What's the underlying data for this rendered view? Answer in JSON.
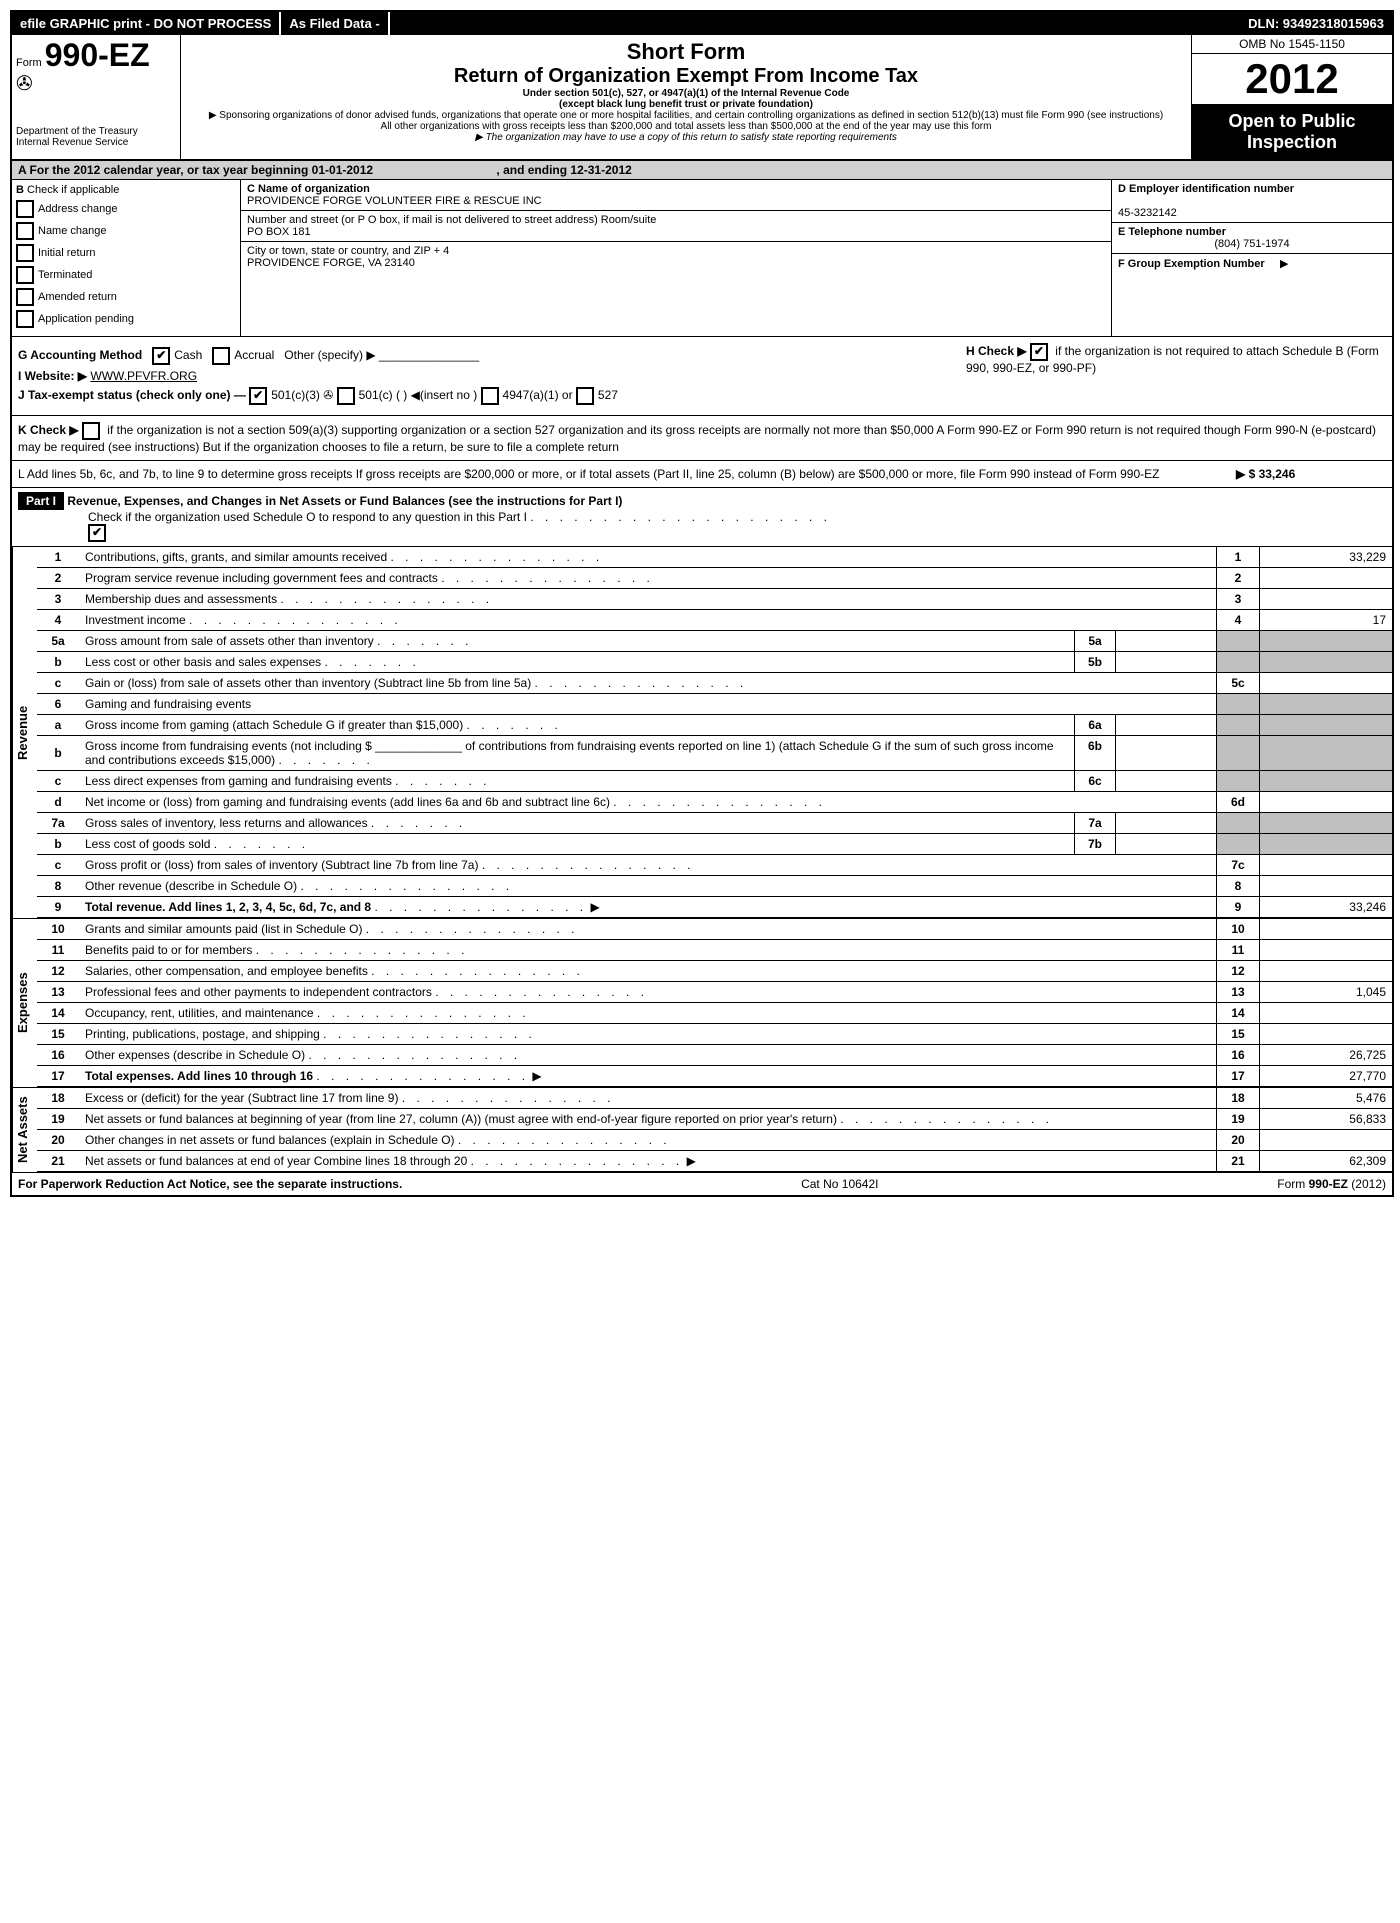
{
  "topbar": {
    "efile": "efile GRAPHIC print - DO NOT PROCESS",
    "asfiled": "As Filed Data -",
    "dln": "DLN: 93492318015963"
  },
  "header": {
    "form_prefix": "Form",
    "form_number": "990-EZ",
    "dept1": "Department of the Treasury",
    "dept2": "Internal Revenue Service",
    "short_form": "Short Form",
    "return_title": "Return of Organization Exempt From Income Tax",
    "under_section": "Under section 501(c), 527, or 4947(a)(1) of the Internal Revenue Code",
    "except": "(except black lung benefit trust or private foundation)",
    "sponsor_note": "▶ Sponsoring organizations of donor advised funds, organizations that operate one or more hospital facilities, and certain controlling organizations as defined in section 512(b)(13) must file Form 990 (see instructions)",
    "all_other": "All other organizations with gross receipts less than $200,000 and total assets less than $500,000 at the end of the year may use this form",
    "copy_note": "▶ The organization may have to use a copy of this return to satisfy state reporting requirements",
    "omb": "OMB No 1545-1150",
    "year": "2012",
    "open_public1": "Open to Public",
    "open_public2": "Inspection"
  },
  "rowA": {
    "text_pre": "A  For the 2012 calendar year, or tax year beginning ",
    "begin": "01-01-2012",
    "text_mid": ", and ending ",
    "end": "12-31-2012"
  },
  "colB": {
    "label": "B",
    "check_if": "Check if applicable",
    "addr_change": "Address change",
    "name_change": "Name change",
    "initial": "Initial return",
    "terminated": "Terminated",
    "amended": "Amended return",
    "pending": "Application pending"
  },
  "colC": {
    "name_label": "C Name of organization",
    "org_name": "PROVIDENCE FORGE VOLUNTEER FIRE & RESCUE INC",
    "street_label": "Number and street (or P O box, if mail is not delivered to street address) Room/suite",
    "street": "PO BOX 181",
    "city_label": "City or town, state or country, and ZIP + 4",
    "city": "PROVIDENCE FORGE, VA 23140"
  },
  "colD": {
    "ein_label": "D Employer identification number",
    "ein": "45-3232142",
    "phone_label": "E Telephone number",
    "phone": "(804) 751-1974",
    "group_label": "F Group Exemption Number",
    "arrow": "▶"
  },
  "misc": {
    "g_line": "G Accounting Method",
    "g_cash": "Cash",
    "g_accrual": "Accrual",
    "g_other": "Other (specify) ▶",
    "h_line": "H  Check ▶",
    "h_text": "if the organization is not required to attach Schedule B (Form 990, 990-EZ, or 990-PF)",
    "i_label": "I Website: ▶",
    "i_site": "WWW.PFVFR.ORG",
    "j_line": "J Tax-exempt status (check only one) —",
    "j_501c3": "501(c)(3)",
    "j_501c": "501(c) (   ) ◀(insert no )",
    "j_4947": "4947(a)(1) or",
    "j_527": "527",
    "k_line": "K Check ▶",
    "k_text": "if the organization is not a section 509(a)(3) supporting organization or a section 527 organization and its gross receipts are normally not more than $50,000  A Form 990-EZ or Form 990 return is not required though Form 990-N (e-postcard) may be required (see instructions)  But if the organization chooses to file a return, be sure to file a complete return",
    "l_line": "L Add lines 5b, 6c, and 7b, to line 9 to determine gross receipts  If gross receipts are $200,000 or more, or if total assets (Part II, line 25, column (B) below) are $500,000 or more, file Form 990 instead of Form 990-EZ",
    "l_amount": "▶ $ 33,246"
  },
  "part1": {
    "label": "Part I",
    "title": "Revenue, Expenses, and Changes in Net Assets or Fund Balances (see the instructions for Part I)",
    "check_note": "Check if the organization used Schedule O to respond to any question in this Part I"
  },
  "vert": {
    "revenue": "Revenue",
    "expenses": "Expenses",
    "netassets": "Net Assets"
  },
  "lines": [
    {
      "n": "1",
      "desc": "Contributions, gifts, grants, and similar amounts received",
      "box": "1",
      "val": "33,229"
    },
    {
      "n": "2",
      "desc": "Program service revenue including government fees and contracts",
      "box": "2",
      "val": ""
    },
    {
      "n": "3",
      "desc": "Membership dues and assessments",
      "box": "3",
      "val": ""
    },
    {
      "n": "4",
      "desc": "Investment income",
      "box": "4",
      "val": "17"
    },
    {
      "n": "5a",
      "desc": "Gross amount from sale of assets other than inventory",
      "sub": "5a",
      "subval": ""
    },
    {
      "n": "b",
      "desc": "Less  cost or other basis and sales expenses",
      "sub": "5b",
      "subval": ""
    },
    {
      "n": "c",
      "desc": "Gain or (loss) from sale of assets other than inventory (Subtract line 5b from line 5a)",
      "box": "5c",
      "val": ""
    },
    {
      "n": "6",
      "desc": "Gaming and fundraising events"
    },
    {
      "n": "a",
      "desc": "Gross income from gaming (attach Schedule G if greater than $15,000)",
      "sub": "6a",
      "subval": ""
    },
    {
      "n": "b",
      "desc": "Gross income from fundraising events (not including $ _____________ of contributions from fundraising events reported on line 1) (attach Schedule G if the sum of such gross income and contributions exceeds $15,000)",
      "sub": "6b",
      "subval": ""
    },
    {
      "n": "c",
      "desc": "Less  direct expenses from gaming and fundraising events",
      "sub": "6c",
      "subval": ""
    },
    {
      "n": "d",
      "desc": "Net income or (loss) from gaming and fundraising events (add lines 6a and 6b and subtract line 6c)",
      "box": "6d",
      "val": ""
    },
    {
      "n": "7a",
      "desc": "Gross sales of inventory, less returns and allowances",
      "sub": "7a",
      "subval": ""
    },
    {
      "n": "b",
      "desc": "Less  cost of goods sold",
      "sub": "7b",
      "subval": ""
    },
    {
      "n": "c",
      "desc": "Gross profit or (loss) from sales of inventory (Subtract line 7b from line 7a)",
      "box": "7c",
      "val": ""
    },
    {
      "n": "8",
      "desc": "Other revenue (describe in Schedule O)",
      "box": "8",
      "val": ""
    },
    {
      "n": "9",
      "desc": "Total revenue. Add lines 1, 2, 3, 4, 5c, 6d, 7c, and 8",
      "box": "9",
      "val": "33,246",
      "bold": true,
      "arrow": true
    }
  ],
  "exp_lines": [
    {
      "n": "10",
      "desc": "Grants and similar amounts paid (list in Schedule O)",
      "box": "10",
      "val": ""
    },
    {
      "n": "11",
      "desc": "Benefits paid to or for members",
      "box": "11",
      "val": ""
    },
    {
      "n": "12",
      "desc": "Salaries, other compensation, and employee benefits",
      "box": "12",
      "val": ""
    },
    {
      "n": "13",
      "desc": "Professional fees and other payments to independent contractors",
      "box": "13",
      "val": "1,045"
    },
    {
      "n": "14",
      "desc": "Occupancy, rent, utilities, and maintenance",
      "box": "14",
      "val": ""
    },
    {
      "n": "15",
      "desc": "Printing, publications, postage, and shipping",
      "box": "15",
      "val": ""
    },
    {
      "n": "16",
      "desc": "Other expenses (describe in Schedule O)",
      "box": "16",
      "val": "26,725"
    },
    {
      "n": "17",
      "desc": "Total expenses. Add lines 10 through 16",
      "box": "17",
      "val": "27,770",
      "bold": true,
      "arrow": true
    }
  ],
  "net_lines": [
    {
      "n": "18",
      "desc": "Excess or (deficit) for the year (Subtract line 17 from line 9)",
      "box": "18",
      "val": "5,476"
    },
    {
      "n": "19",
      "desc": "Net assets or fund balances at beginning of year (from line 27, column (A)) (must agree with end-of-year figure reported on prior year's return)",
      "box": "19",
      "val": "56,833"
    },
    {
      "n": "20",
      "desc": "Other changes in net assets or fund balances (explain in Schedule O)",
      "box": "20",
      "val": ""
    },
    {
      "n": "21",
      "desc": "Net assets or fund balances at end of year  Combine lines 18 through 20",
      "box": "21",
      "val": "62,309",
      "arrow": true
    }
  ],
  "footer": {
    "paperwork": "For Paperwork Reduction Act Notice, see the separate instructions.",
    "catno": "Cat No 10642I",
    "formref": "Form 990-EZ (2012)"
  }
}
